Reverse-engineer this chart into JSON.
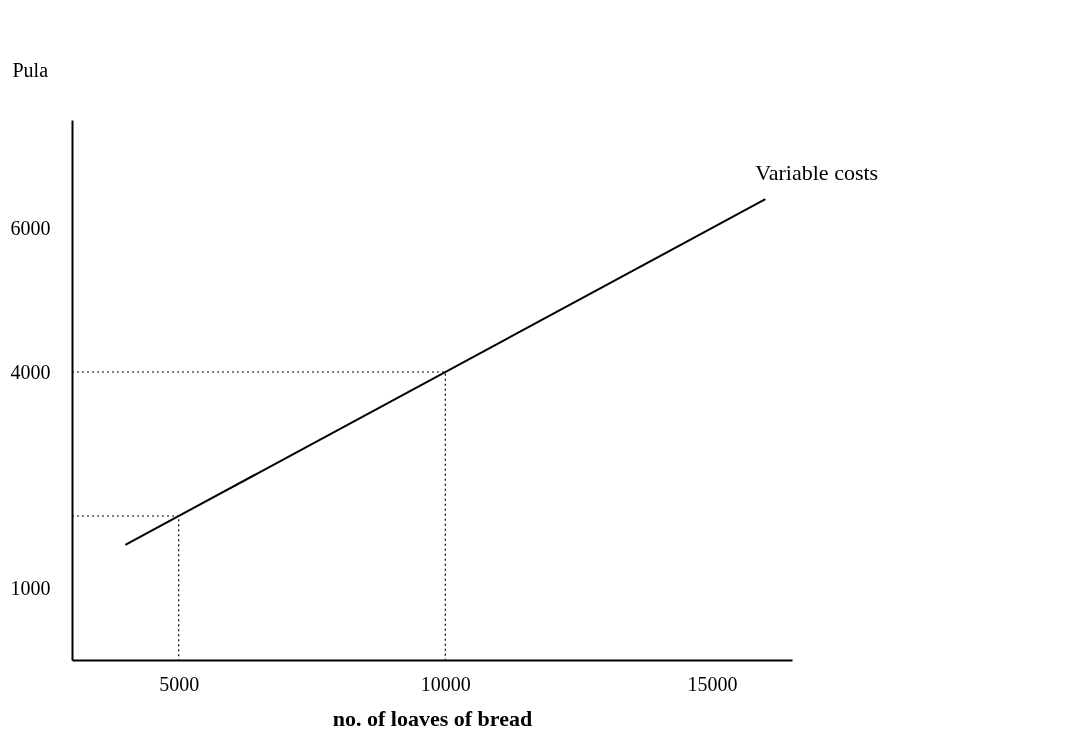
{
  "chart_data": {
    "type": "line",
    "xlabel": "no. of loaves of bread",
    "ylabel": "Pula",
    "xlim": [
      3000,
      16500
    ],
    "ylim": [
      0,
      7500
    ],
    "xticks": [
      5000,
      10000,
      15000
    ],
    "yticks": [
      1000,
      4000,
      6000
    ],
    "grid": false,
    "legend": false,
    "marker": "none",
    "series": [
      {
        "name": "Variable costs",
        "color": "#000000",
        "line_style": "solid",
        "x": [
          4000,
          16000
        ],
        "values": [
          1600,
          6400
        ]
      },
      {
        "color": "#000000",
        "line_style": "dotted",
        "x": [
          3000,
          10000,
          10000
        ],
        "values": [
          4000,
          4000,
          0
        ]
      },
      {
        "color": "#000000",
        "line_style": "dotted",
        "x": [
          3000,
          5000,
          5000
        ],
        "values": [
          2000,
          2000,
          0
        ]
      }
    ]
  }
}
